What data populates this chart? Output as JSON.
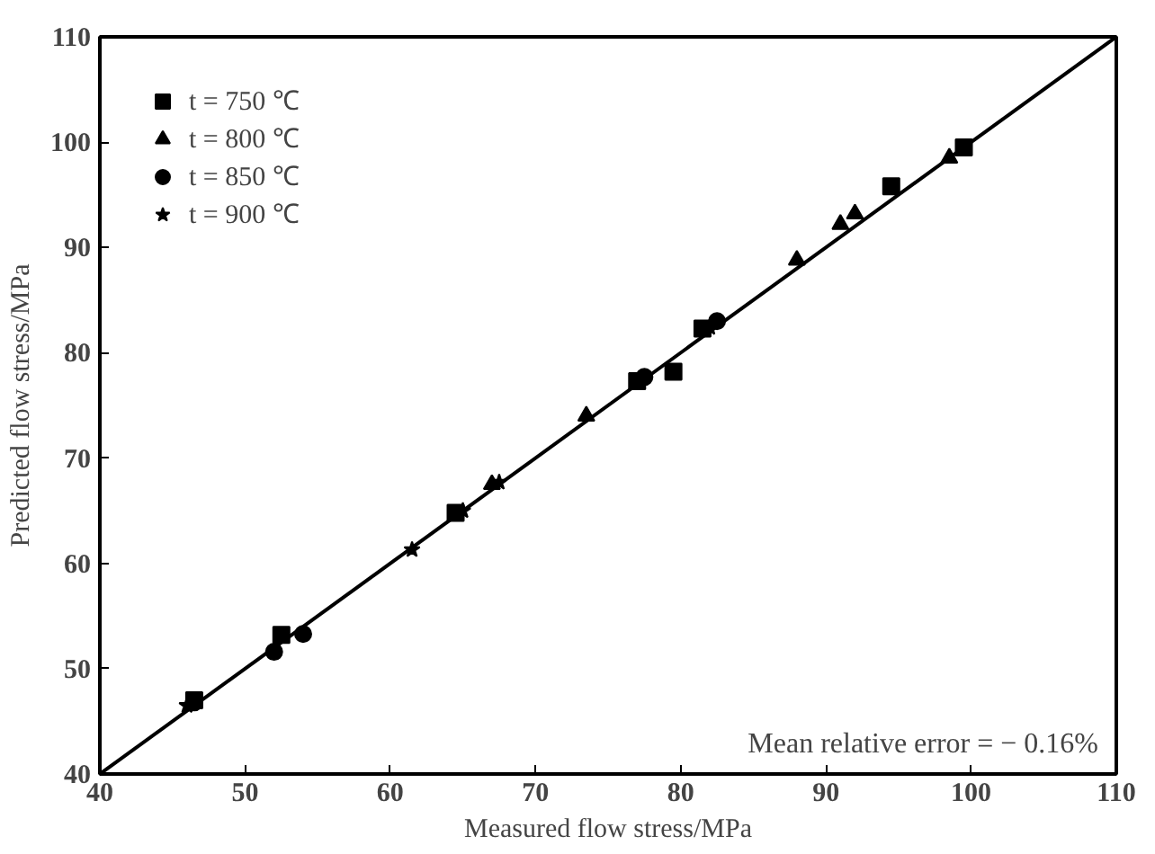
{
  "chart_data": {
    "type": "scatter",
    "xlabel": "Measured flow stress/MPa",
    "ylabel": "Predicted flow stress/MPa",
    "xlim": [
      40,
      110
    ],
    "ylim": [
      40,
      110
    ],
    "xticks": [
      40,
      50,
      60,
      70,
      80,
      90,
      100,
      110
    ],
    "yticks": [
      40,
      50,
      60,
      70,
      80,
      90,
      100,
      110
    ],
    "grid": false,
    "legend": "top left",
    "series": [
      {
        "name": "t = 750 ℃",
        "color": "#000000",
        "marker": "square",
        "x": [
          46.5,
          52.5,
          64.5,
          77,
          79.5,
          81.5,
          94.5,
          99.5
        ],
        "values": [
          47,
          53.2,
          64.8,
          77.3,
          78.2,
          82.3,
          95.8,
          99.5
        ]
      },
      {
        "name": "t = 800 ℃",
        "color": "#000000",
        "marker": "triangle",
        "x": [
          67,
          73.5,
          88,
          91,
          92,
          98.5
        ],
        "values": [
          67.5,
          74,
          88.8,
          92.2,
          93.2,
          98.5
        ]
      },
      {
        "name": "t = 850 ℃",
        "color": "#000000",
        "marker": "circle",
        "x": [
          46.5,
          52,
          54,
          77.5,
          82.5
        ],
        "values": [
          46.8,
          51.6,
          53.3,
          77.7,
          83
        ]
      },
      {
        "name": "t = 900 ℃",
        "color": "#000000",
        "marker": "star",
        "x": [
          46,
          61.5,
          65,
          67.5,
          82
        ],
        "values": [
          46.5,
          61.3,
          65,
          67.7,
          82.4
        ]
      },
      {
        "type": "line",
        "color": "#000000",
        "line_style": "solid",
        "x": [
          40,
          110
        ],
        "values": [
          40,
          110
        ]
      }
    ],
    "annotations": [
      "Mean relative error = − 0.16%"
    ]
  }
}
